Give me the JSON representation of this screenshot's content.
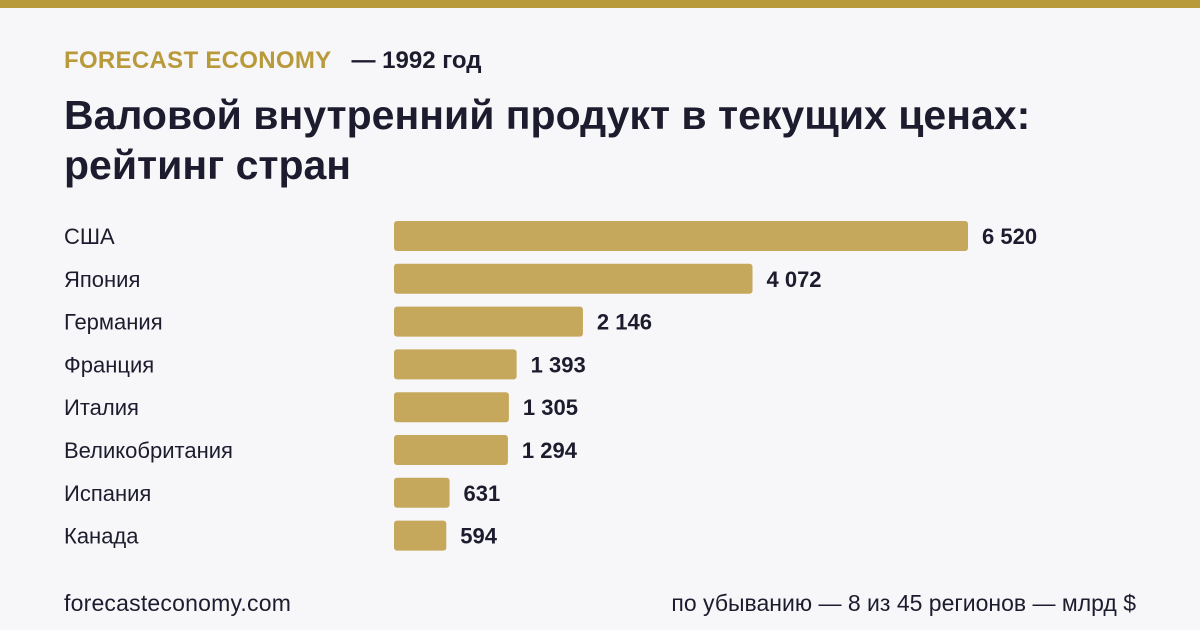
{
  "header": {
    "brand": "FORECAST ECONOMY",
    "year_label": "— 1992 год",
    "title": "Валовой внутренний продукт в текущих ценах: рейтинг стран"
  },
  "footer": {
    "site": "forecasteconomy.com",
    "note": "по убыванию — 8 из 45 регионов — млрд $"
  },
  "colors": {
    "accent": "#b89a3a",
    "bar": "#c6a85c",
    "text": "#1c1c2e",
    "background": "#f7f7f9"
  },
  "chart_data": {
    "type": "bar",
    "orientation": "horizontal",
    "categories": [
      "США",
      "Япония",
      "Германия",
      "Франция",
      "Италия",
      "Великобритания",
      "Испания",
      "Канада"
    ],
    "values": [
      6520,
      4072,
      2146,
      1393,
      1305,
      1294,
      631,
      594
    ],
    "value_labels": [
      "6 520",
      "4 072",
      "2 146",
      "1 393",
      "1 305",
      "1 294",
      "631",
      "594"
    ],
    "xlim": [
      0,
      6520
    ],
    "grid": false,
    "legend": "none",
    "unit": "млрд $"
  }
}
